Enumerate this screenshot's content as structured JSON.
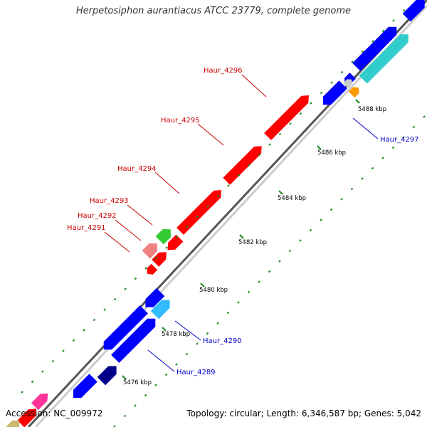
{
  "header": {
    "title": "Herpetosiphon aurantiacus ATCC 23779, complete genome"
  },
  "footer": {
    "accession": "Accession: NC_009972",
    "stats": "Topology: circular; Length: 6,346,587 bp; Genes: 5,042"
  },
  "colors": {
    "backbone": "#555555",
    "tick": "#1a8a1a",
    "red": "#ff0000",
    "blue": "#0000ff",
    "cyan": "#33cccc",
    "sky": "#33bbff",
    "navy": "#000088",
    "green": "#33cc33",
    "pink": "#f08080",
    "magenta": "#ff3399",
    "orange": "#ff9900",
    "olive": "#c8b870",
    "label_red": "#cc0000",
    "label_blue": "#0000cc"
  },
  "ticks": [
    {
      "label": "5476 kbp"
    },
    {
      "label": "5478 kbp"
    },
    {
      "label": "5480 kbp"
    },
    {
      "label": "5482 kbp"
    },
    {
      "label": "5484 kbp"
    },
    {
      "label": "5486 kbp"
    },
    {
      "label": "5488 kbp"
    }
  ],
  "gene_labels": [
    {
      "text": "Haur_4296",
      "color": "label_red"
    },
    {
      "text": "Haur_4295",
      "color": "label_red"
    },
    {
      "text": "Haur_4294",
      "color": "label_red"
    },
    {
      "text": "Haur_4293",
      "color": "label_red"
    },
    {
      "text": "Haur_4292",
      "color": "label_red"
    },
    {
      "text": "Haur_4291",
      "color": "label_red"
    },
    {
      "text": "Haur_4297",
      "color": "label_blue"
    },
    {
      "text": "Haur_4290",
      "color": "label_blue"
    },
    {
      "text": "Haur_4289",
      "color": "label_blue"
    }
  ]
}
